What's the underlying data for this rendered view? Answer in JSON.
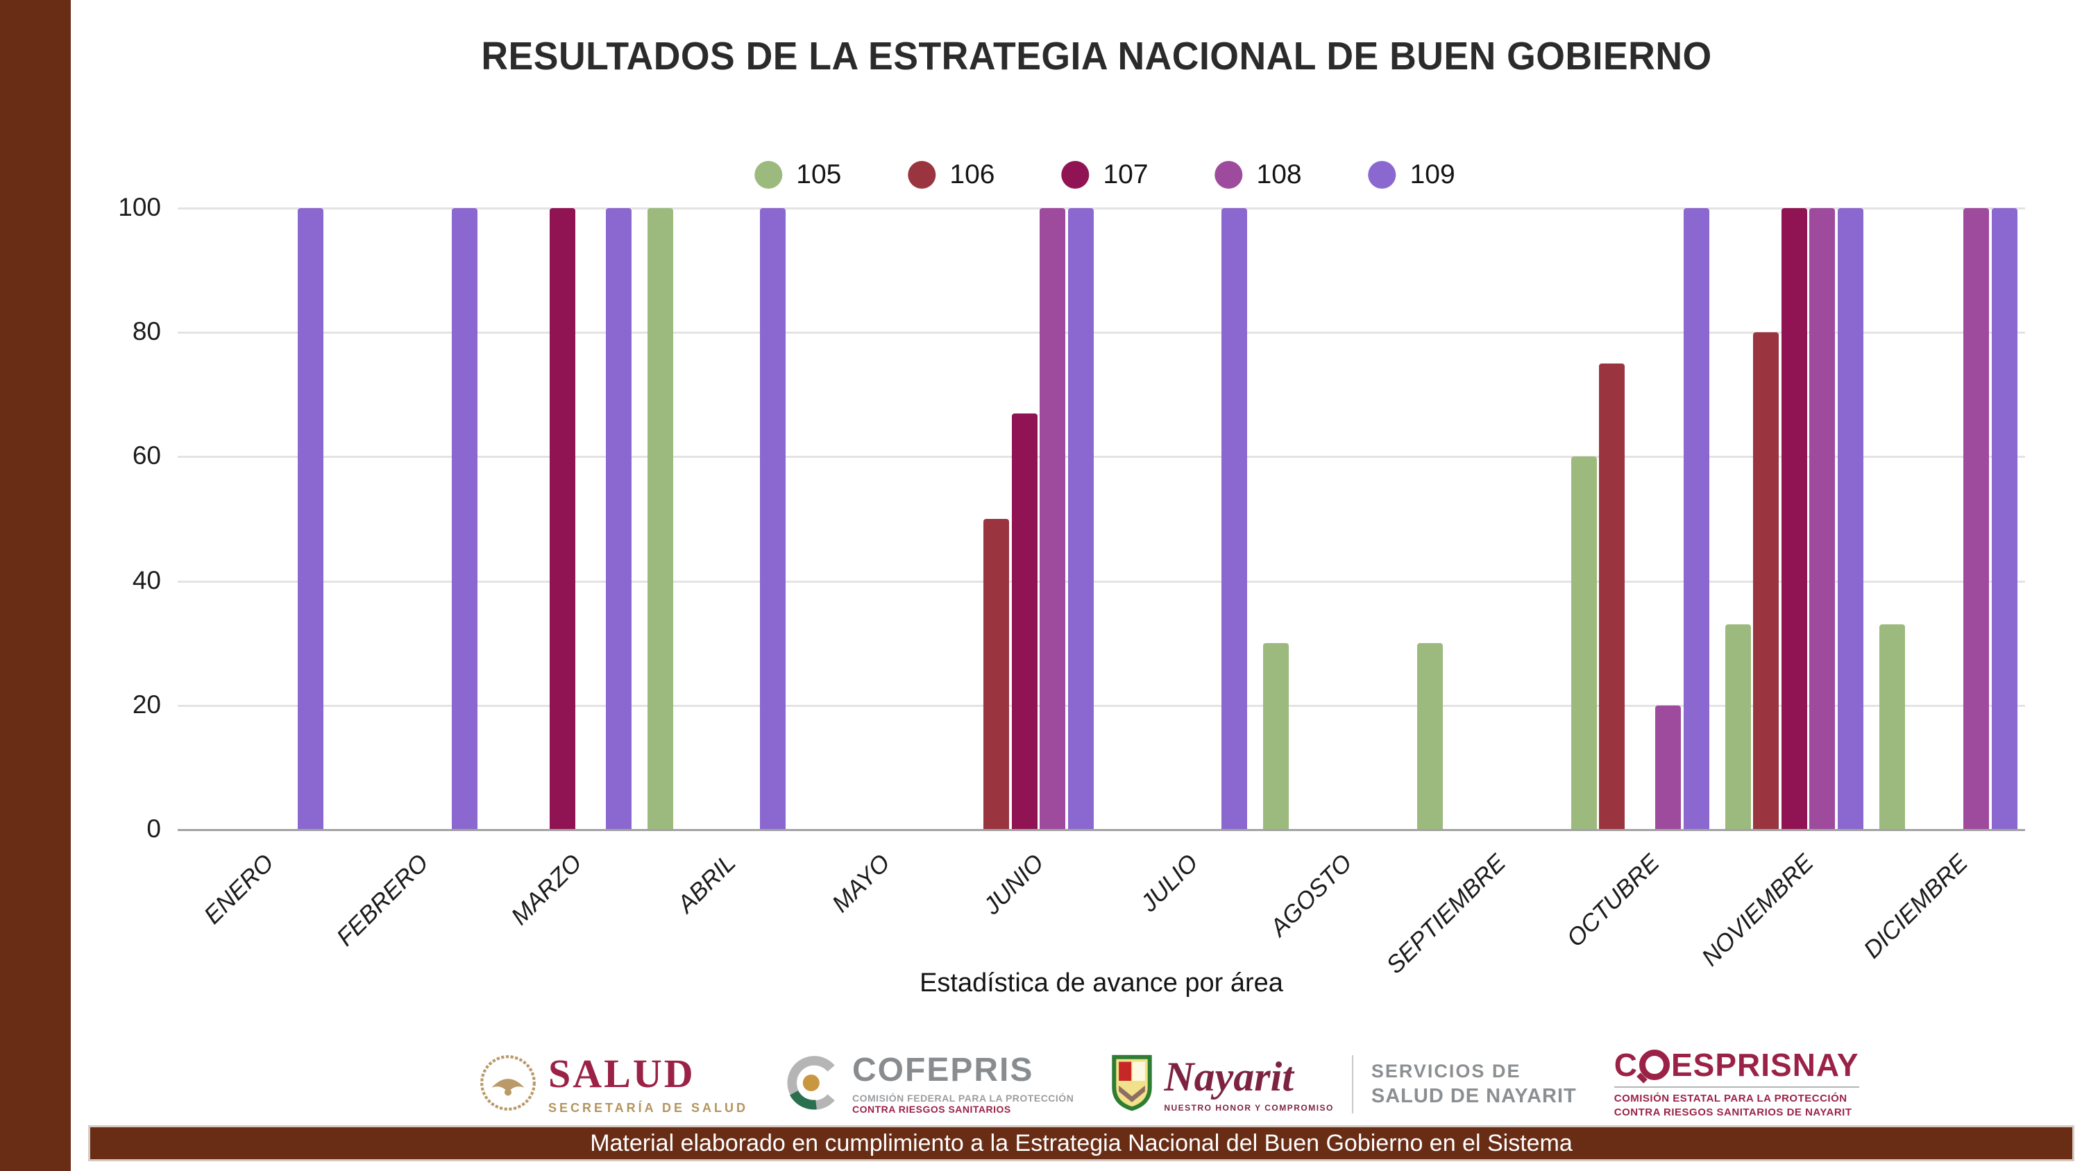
{
  "page": {
    "bottom_bar_text": "Material elaborado en cumplimiento a la Estrategia Nacional  del Buen Gobierno en el Sistema"
  },
  "chart_data": {
    "type": "bar",
    "title": "RESULTADOS DE LA ESTRATEGIA NACIONAL DE BUEN GOBIERNO",
    "xlabel": "Estadística de avance por área",
    "ylabel": "",
    "ylim": [
      0,
      100
    ],
    "yticks": [
      0,
      20,
      40,
      60,
      80,
      100
    ],
    "grid": true,
    "legend_position": "top-center",
    "categories": [
      "ENERO",
      "FEBRERO",
      "MARZO",
      "ABRIL",
      "MAYO",
      "JUNIO",
      "JULIO",
      "AGOSTO",
      "SEPTIEMBRE",
      "OCTUBRE",
      "NOVIEMBRE",
      "DICIEMBRE"
    ],
    "series": [
      {
        "name": "105",
        "color": "#9cba7e",
        "values": [
          null,
          null,
          null,
          100,
          null,
          null,
          null,
          30,
          30,
          60,
          33,
          33
        ]
      },
      {
        "name": "106",
        "color": "#9a3540",
        "values": [
          null,
          null,
          null,
          null,
          null,
          50,
          null,
          null,
          null,
          75,
          80,
          null
        ]
      },
      {
        "name": "107",
        "color": "#901454",
        "values": [
          null,
          null,
          100,
          null,
          null,
          67,
          null,
          null,
          null,
          null,
          100,
          null
        ]
      },
      {
        "name": "108",
        "color": "#9e4b9e",
        "values": [
          null,
          null,
          null,
          null,
          null,
          100,
          null,
          null,
          null,
          20,
          100,
          100
        ]
      },
      {
        "name": "109",
        "color": "#8b68d0",
        "values": [
          100,
          100,
          100,
          100,
          null,
          100,
          100,
          null,
          null,
          100,
          100,
          100
        ]
      }
    ]
  },
  "logos": {
    "salud": {
      "name": "SALUD",
      "sub": "SECRETARÍA DE SALUD"
    },
    "cofepris": {
      "name": "COFEPRIS",
      "sub1": "COMISIÓN FEDERAL PARA LA PROTECCIÓN",
      "sub2": "CONTRA RIESGOS SANITARIOS"
    },
    "nayarit": {
      "name": "Nayarit",
      "sub": "NUESTRO HONOR Y COMPROMISO",
      "right1": "SERVICIOS DE",
      "right2": "SALUD DE NAYARIT"
    },
    "coesprisnay": {
      "prefix": "C",
      "rest": "ESPRISNAY",
      "sub1": "COMISIÓN ESTATAL PARA LA PROTECCIÓN",
      "sub2": "CONTRA RIESGOS SANITARIOS DE NAYARIT"
    }
  },
  "colors": {
    "accent_brown": "#692d16",
    "brand_maroon": "#9b2247",
    "logo_gold": "#b3955e",
    "logo_gray": "#8c8f92",
    "gridline": "#e3e3e3",
    "axis": "#a2a2a2"
  }
}
